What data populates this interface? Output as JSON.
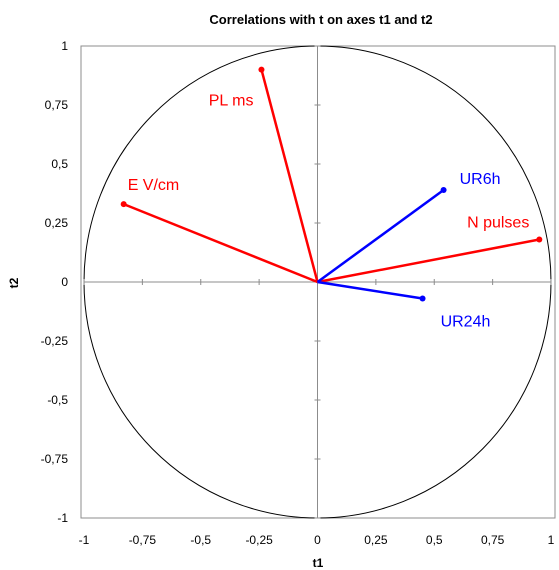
{
  "chart_data": {
    "type": "scatter",
    "title": "Correlations with t on axes t1 and t2",
    "xlabel": "t1",
    "ylabel": "t2",
    "xlim": [
      -1,
      1
    ],
    "ylim": [
      -1,
      1
    ],
    "x_ticks": [
      "-1",
      "-0,75",
      "-0,5",
      "-0,25",
      "0",
      "0,25",
      "0,5",
      "0,75",
      "1"
    ],
    "y_ticks": [
      "1",
      "0,75",
      "0,5",
      "0,25",
      "0",
      "-0,25",
      "-0,5",
      "-0,75",
      "-1"
    ],
    "grid": false,
    "unit_circle": true,
    "series": [
      {
        "color": "#ff0000",
        "points": [
          {
            "label": "PL ms",
            "x": -0.24,
            "y": 0.9
          },
          {
            "label": "E V/cm",
            "x": -0.83,
            "y": 0.33
          },
          {
            "label": "N pulses",
            "x": 0.95,
            "y": 0.18
          }
        ]
      },
      {
        "color": "#0000ff",
        "points": [
          {
            "label": "UR6h",
            "x": 0.54,
            "y": 0.39
          },
          {
            "label": "UR24h",
            "x": 0.45,
            "y": -0.07
          }
        ]
      }
    ]
  }
}
